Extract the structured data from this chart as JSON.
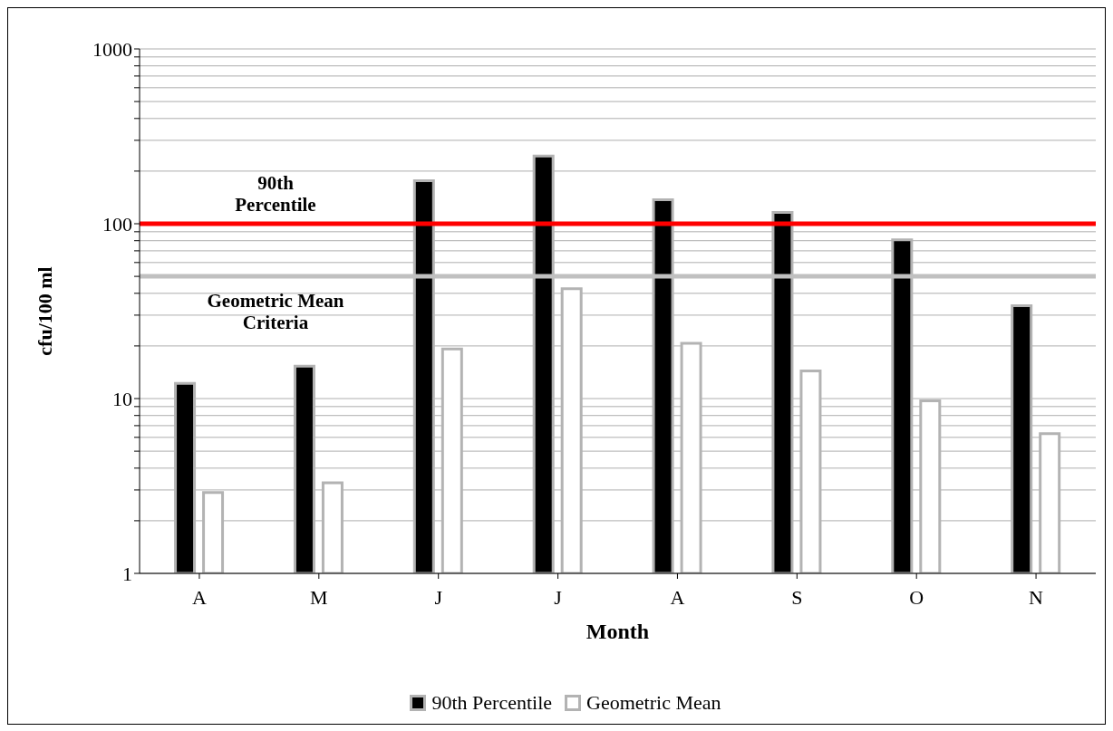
{
  "chart_data": {
    "type": "bar",
    "xlabel": "Month",
    "ylabel": "cfu/100 ml",
    "categories": [
      "A",
      "M",
      "J",
      "J",
      "A",
      "S",
      "O",
      "N"
    ],
    "series": [
      {
        "name": "90th Percentile",
        "color": "#000000",
        "values": [
          12.2,
          15.3,
          176,
          244,
          137,
          116,
          81,
          34
        ]
      },
      {
        "name": "Geometric Mean",
        "color": "#ffffff",
        "values": [
          2.9,
          3.3,
          19.2,
          42.5,
          20.7,
          14.4,
          9.7,
          6.3
        ]
      }
    ],
    "log": true,
    "ylim": [
      1,
      1000
    ],
    "yticks": [
      1,
      {
        "value": 2,
        "label": null
      },
      {
        "value": 3,
        "label": null
      },
      {
        "value": 4,
        "label": null
      },
      {
        "value": 5,
        "label": null
      },
      {
        "value": 6,
        "label": null
      },
      {
        "value": 7,
        "label": null
      },
      {
        "value": 8,
        "label": null
      },
      {
        "value": 9,
        "label": null
      },
      10,
      {
        "value": 20,
        "label": null
      },
      {
        "value": 30,
        "label": null
      },
      {
        "value": 40,
        "label": null
      },
      {
        "value": 50,
        "label": null
      },
      {
        "value": 60,
        "label": null
      },
      {
        "value": 70,
        "label": null
      },
      {
        "value": 80,
        "label": null
      },
      {
        "value": 90,
        "label": null
      },
      100,
      {
        "value": 200,
        "label": null
      },
      {
        "value": 300,
        "label": null
      },
      {
        "value": 400,
        "label": null
      },
      {
        "value": 500,
        "label": null
      },
      {
        "value": 600,
        "label": null
      },
      {
        "value": 700,
        "label": null
      },
      {
        "value": 800,
        "label": null
      },
      {
        "value": 900,
        "label": null
      },
      1000
    ],
    "grid": "y",
    "legend": "bottom",
    "ref_lines": [
      {
        "axis": "y",
        "value": 100,
        "label": "90th Percentile",
        "color": "#ff0000"
      },
      {
        "axis": "y",
        "value": 50,
        "label": "Geometric Mean Criteria",
        "color": "#c0c0c0"
      }
    ]
  }
}
